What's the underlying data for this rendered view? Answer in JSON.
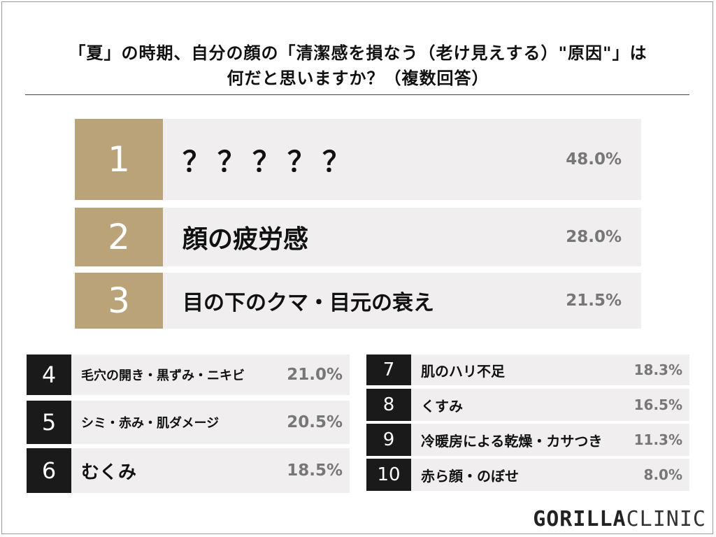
{
  "header": {
    "title_line1": "「夏」の時期、自分の顔の「清潔感を損なう（老け見えする）\"原因\"」は",
    "title_line2": "何だと思いますか？（複数回答）"
  },
  "colors": {
    "gold": "#bba379",
    "dark": "#1a1a1a",
    "row_bg": "#f0eeee",
    "pct_text": "#777777"
  },
  "chart_data": {
    "type": "bar",
    "title": "「夏」の時期、自分の顔の「清潔感を損なう（老け見えする）\"原因\"」は何だと思いますか？（複数回答）",
    "categories": [
      "？？？？？",
      "顔の疲労感",
      "目の下のクマ・目元の衰え",
      "毛穴の開き・黒ずみ・ニキビ",
      "シミ・赤み・肌ダメージ",
      "むくみ",
      "肌のハリ不足",
      "くすみ",
      "冷暖房による乾燥・カサつき",
      "赤ら顔・のぼせ"
    ],
    "values": [
      48.0,
      28.0,
      21.5,
      21.0,
      20.5,
      18.5,
      18.3,
      16.5,
      11.3,
      8.0
    ],
    "value_labels": [
      "48.0%",
      "28.0%",
      "21.5%",
      "21.0%",
      "20.5%",
      "18.5%",
      "18.3%",
      "16.5%",
      "11.3%",
      "8.0%"
    ],
    "ranks": [
      "1",
      "2",
      "3",
      "4",
      "5",
      "6",
      "7",
      "8",
      "9",
      "10"
    ],
    "unit": "%"
  },
  "brand": {
    "logo_bold": "GORILLA",
    "logo_light": "CLINIC"
  }
}
